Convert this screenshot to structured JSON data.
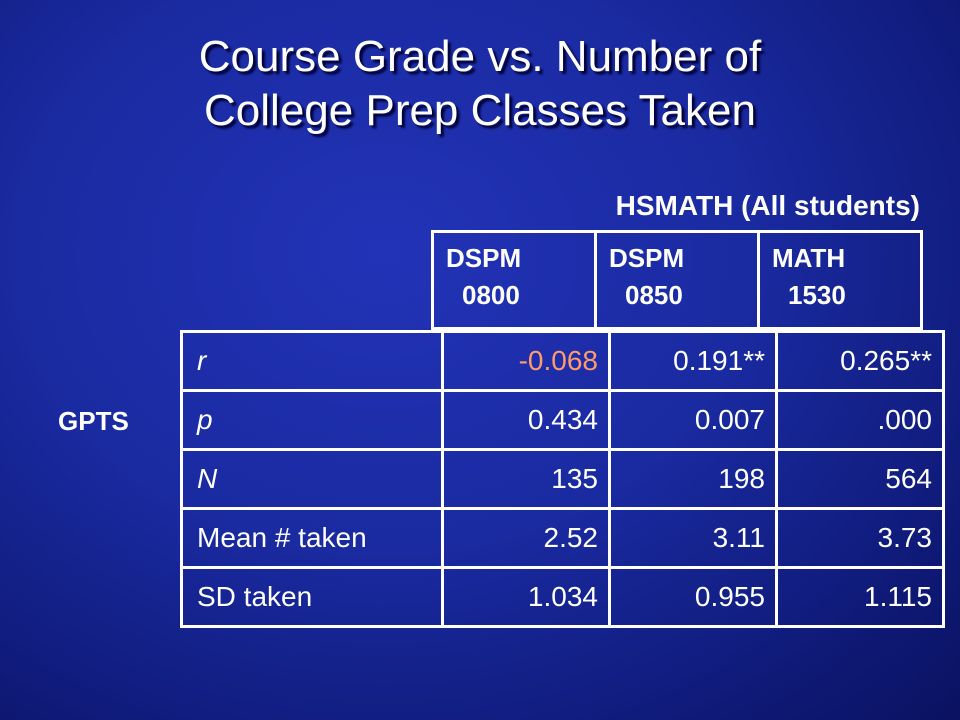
{
  "title_line1": "Course Grade vs. Number of",
  "title_line2": "College Prep Classes Taken",
  "subtitle": "HSMATH (All students)",
  "row_group_label": "GPTS",
  "columns": [
    {
      "line1": "DSPM",
      "line2": "0800"
    },
    {
      "line1": "DSPM",
      "line2": "0850"
    },
    {
      "line1": "MATH",
      "line2": "1530"
    }
  ],
  "rows": [
    {
      "label": "r",
      "values": [
        "-0.068",
        "0.191**",
        "0.265**"
      ]
    },
    {
      "label": "p",
      "values": [
        "0.434",
        "0.007",
        ".000"
      ]
    },
    {
      "label": "N",
      "values": [
        "135",
        "198",
        "564"
      ]
    },
    {
      "label": "Mean # taken",
      "values": [
        "2.52",
        "3.11",
        "3.73"
      ]
    },
    {
      "label": "SD taken",
      "values": [
        "1.034",
        "0.955",
        "1.115"
      ]
    }
  ],
  "colors": {
    "negative_value": "#ff9a6a",
    "background": "#1a2aa0",
    "text": "#ffffff"
  }
}
